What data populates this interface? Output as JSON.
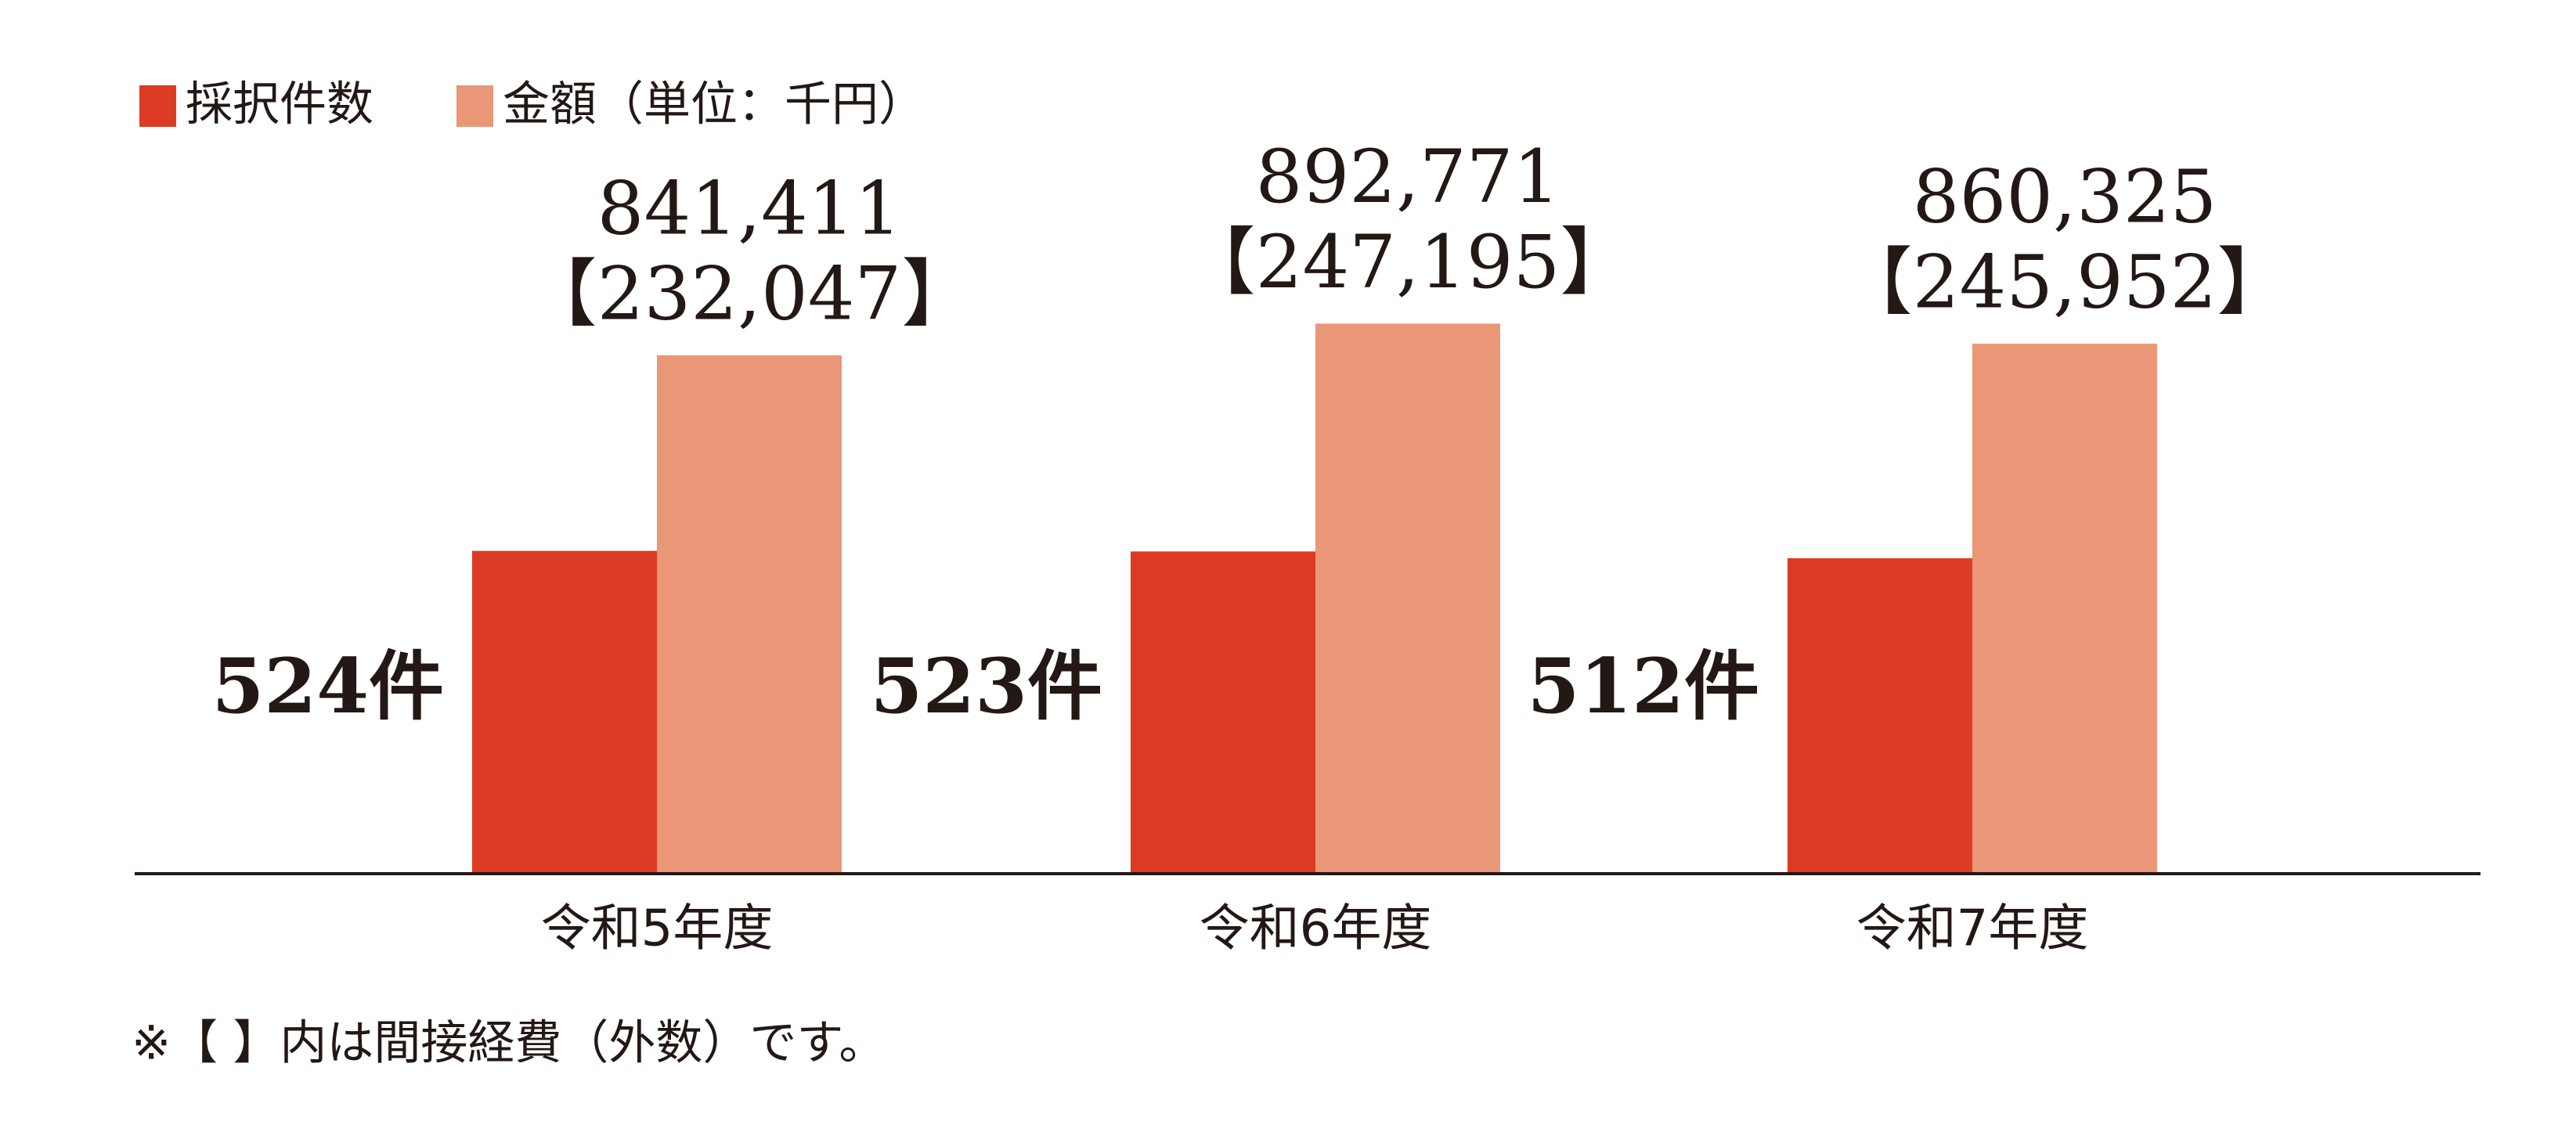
{
  "chart_data": {
    "type": "bar",
    "categories": [
      "令和5年度",
      "令和6年度",
      "令和7年度"
    ],
    "series": [
      {
        "name": "採択件数",
        "color": "#dc3a22",
        "values": [
          524,
          523,
          512
        ],
        "value_labels": [
          "524件",
          "523件",
          "512件"
        ]
      },
      {
        "name": "金額（単位：千円）",
        "color": "#e99776",
        "axis": "y2",
        "values": [
          841411,
          892771,
          860325
        ],
        "value_labels": [
          "841,411",
          "892,771",
          "860,325"
        ],
        "sub_labels": [
          "【232,047】",
          "【247,195】",
          "【245,952】"
        ]
      }
    ],
    "ylim": [
      0,
      1000
    ],
    "y2lim": [
      0,
      1000000
    ],
    "note": "※【 】内は間接経費（外数）です。"
  }
}
